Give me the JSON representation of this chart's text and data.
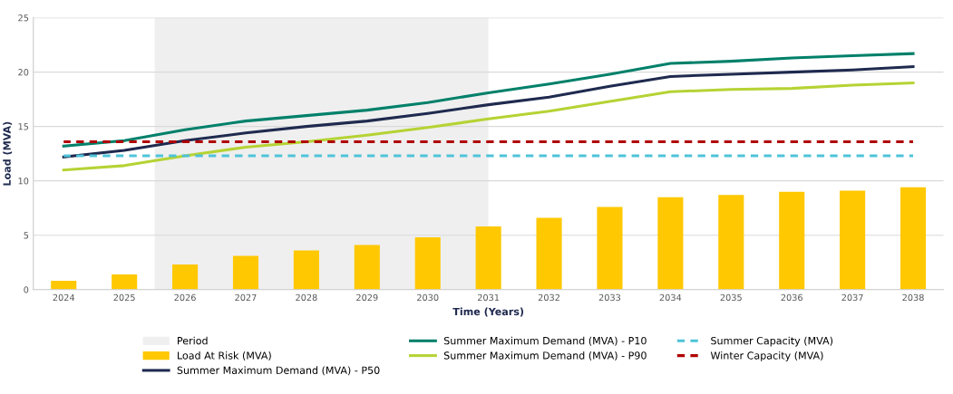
{
  "chart_data": {
    "type": "bar",
    "xlabel": "Time (Years)",
    "ylabel": "Load (MVA)",
    "x": [
      2024,
      2025,
      2026,
      2027,
      2028,
      2029,
      2030,
      2031,
      2032,
      2033,
      2034,
      2035,
      2036,
      2037,
      2038
    ],
    "xlim": [
      2023.5,
      2038.5
    ],
    "xticks": [
      2024,
      2025,
      2026,
      2027,
      2028,
      2029,
      2030,
      2031,
      2032,
      2033,
      2034,
      2035,
      2036,
      2037,
      2038
    ],
    "ylim": [
      0,
      25
    ],
    "yticks": [
      0,
      5,
      10,
      15,
      20,
      25
    ],
    "grid": "y",
    "legend": "bottom",
    "bands": [
      {
        "axis": "x",
        "from": 2025.5,
        "to": 2031,
        "label": "Period",
        "color": "#efefef"
      }
    ],
    "series": [
      {
        "name": "Load At Risk (MVA)",
        "color": "#ffc800",
        "values": [
          0.8,
          1.4,
          2.3,
          3.1,
          3.6,
          4.1,
          4.8,
          5.8,
          6.6,
          7.6,
          8.5,
          8.7,
          9.0,
          9.1,
          9.4
        ]
      },
      {
        "name": "Summer Maximum Demand (MVA) - P50",
        "type": "line",
        "color": "#1f2a4f",
        "line_style": "solid",
        "values": [
          12.2,
          12.8,
          13.7,
          14.4,
          15.0,
          15.5,
          16.2,
          17.0,
          17.7,
          18.7,
          19.6,
          19.8,
          20.0,
          20.2,
          20.5
        ]
      },
      {
        "name": "Summer Maximum Demand (MVA) - P10",
        "type": "line",
        "color": "#00806a",
        "line_style": "solid",
        "values": [
          13.2,
          13.7,
          14.7,
          15.5,
          16.0,
          16.5,
          17.2,
          18.1,
          18.9,
          19.8,
          20.8,
          21.0,
          21.3,
          21.5,
          21.7
        ]
      },
      {
        "name": "Summer Maximum Demand (MVA) - P90",
        "type": "line",
        "color": "#b5d334",
        "line_style": "solid",
        "values": [
          11.0,
          11.4,
          12.3,
          13.1,
          13.6,
          14.2,
          14.9,
          15.7,
          16.4,
          17.3,
          18.2,
          18.4,
          18.5,
          18.8,
          19.0
        ]
      },
      {
        "name": "Summer Capacity (MVA)",
        "type": "line",
        "color": "#4fc3d9",
        "line_style": "dashed",
        "values": [
          12.3,
          12.3,
          12.3,
          12.3,
          12.3,
          12.3,
          12.3,
          12.3,
          12.3,
          12.3,
          12.3,
          12.3,
          12.3,
          12.3,
          12.3
        ]
      },
      {
        "name": "Winter Capacity (MVA)",
        "type": "line",
        "color": "#b00000",
        "line_style": "dashed",
        "values": [
          13.6,
          13.6,
          13.6,
          13.6,
          13.6,
          13.6,
          13.6,
          13.6,
          13.6,
          13.6,
          13.6,
          13.6,
          13.6,
          13.6,
          13.6
        ]
      }
    ]
  }
}
